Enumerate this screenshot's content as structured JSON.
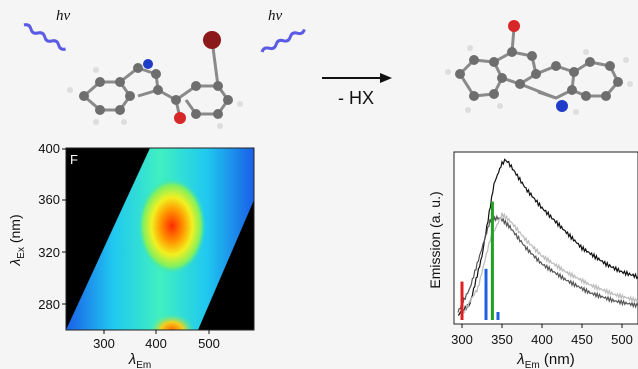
{
  "scheme": {
    "photon_label_left": "hν",
    "photon_label_right": "hν",
    "arrow_label": "- HX",
    "colors": {
      "wave": "#5b5be6",
      "bromine": "#8b1a1a",
      "oxygen": "#d62828",
      "nitrogen": "#1e3cc8",
      "carbon": "#6e6e6e",
      "hydrogen": "#e0e0e0"
    }
  },
  "heatmap": {
    "panel_letter": "F",
    "xlabel": "λEm",
    "xlabel_base": "λ",
    "xlabel_sub": "Em",
    "ylabel": "λEx (nm)",
    "ylabel_base": "λ",
    "ylabel_sub": "Ex",
    "ylabel_unit": " (nm)",
    "xticks": [
      "300",
      "400",
      "500"
    ],
    "yticks": [
      "280",
      "320",
      "360",
      "400"
    ]
  },
  "chart_data": {
    "type": "line",
    "xlabel": "λEm (nm)",
    "xlabel_base": "λ",
    "xlabel_sub": "Em",
    "xlabel_unit": " (nm)",
    "ylabel": "Emission (a. u.)",
    "xticks": [
      "300",
      "350",
      "400",
      "450",
      "500"
    ],
    "xlim": [
      290,
      520
    ],
    "series": [
      {
        "color": "#111111",
        "x": [
          295,
          310,
          325,
          340,
          350,
          355,
          360,
          380,
          400,
          420,
          450,
          480,
          500,
          520
        ],
        "y": [
          0.03,
          0.1,
          0.4,
          0.85,
          0.98,
          1.0,
          0.97,
          0.82,
          0.7,
          0.6,
          0.45,
          0.35,
          0.3,
          0.27
        ]
      },
      {
        "color": "#555555",
        "x": [
          295,
          310,
          325,
          335,
          345,
          350,
          360,
          380,
          400,
          430,
          460,
          490,
          520
        ],
        "y": [
          0.05,
          0.2,
          0.45,
          0.62,
          0.64,
          0.63,
          0.58,
          0.45,
          0.35,
          0.25,
          0.17,
          0.12,
          0.09
        ]
      },
      {
        "color": "#bbbbbb",
        "x": [
          300,
          320,
          335,
          350,
          360,
          380,
          400,
          430,
          460,
          490,
          520
        ],
        "y": [
          0.03,
          0.2,
          0.5,
          0.66,
          0.62,
          0.5,
          0.4,
          0.3,
          0.22,
          0.16,
          0.12
        ]
      }
    ],
    "bars": [
      {
        "x": 300,
        "height": 0.24,
        "color": "#e02020"
      },
      {
        "x": 330,
        "height": 0.32,
        "color": "#1f5fe0"
      },
      {
        "x": 338,
        "height": 0.74,
        "color": "#22a022"
      },
      {
        "x": 345,
        "height": 0.05,
        "color": "#1f5fe0"
      }
    ]
  }
}
